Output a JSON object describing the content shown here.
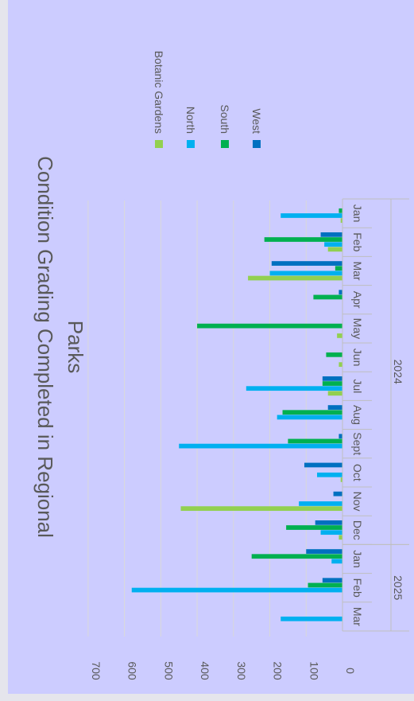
{
  "chart_data": {
    "type": "bar",
    "orientation": "rotated-90-cw",
    "title_lines": [
      "Condition Grading Completed in Regional",
      "Parks"
    ],
    "categories": [
      "Jan",
      "Feb",
      "Mar",
      "Apr",
      "May",
      "Jun",
      "Jul",
      "Aug",
      "Sept",
      "Oct",
      "Nov",
      "Dec",
      "Jan",
      "Feb",
      "Mar"
    ],
    "year_groups": [
      {
        "label": "2024",
        "start": 0,
        "end": 11
      },
      {
        "label": "2025",
        "start": 12,
        "end": 14
      }
    ],
    "series": [
      {
        "name": "Botanic Gardens",
        "color": "#92d050",
        "values": [
          5,
          40,
          260,
          0,
          15,
          10,
          40,
          0,
          0,
          5,
          445,
          10,
          0,
          0,
          0
        ]
      },
      {
        "name": "North",
        "color": "#00b0f0",
        "values": [
          170,
          50,
          200,
          0,
          0,
          0,
          265,
          180,
          450,
          70,
          120,
          60,
          30,
          580,
          170
        ]
      },
      {
        "name": "South",
        "color": "#00b050",
        "values": [
          10,
          215,
          20,
          80,
          400,
          45,
          55,
          165,
          150,
          0,
          0,
          155,
          250,
          95,
          0
        ]
      },
      {
        "name": "West",
        "color": "#0070c0",
        "values": [
          0,
          60,
          195,
          10,
          0,
          0,
          55,
          40,
          10,
          105,
          25,
          75,
          100,
          55,
          0
        ]
      }
    ],
    "yaxis": {
      "min": 0,
      "max": 700,
      "ticks": [
        0,
        100,
        200,
        300,
        400,
        500,
        600,
        700
      ]
    },
    "grid": true,
    "legend_position": "right"
  }
}
